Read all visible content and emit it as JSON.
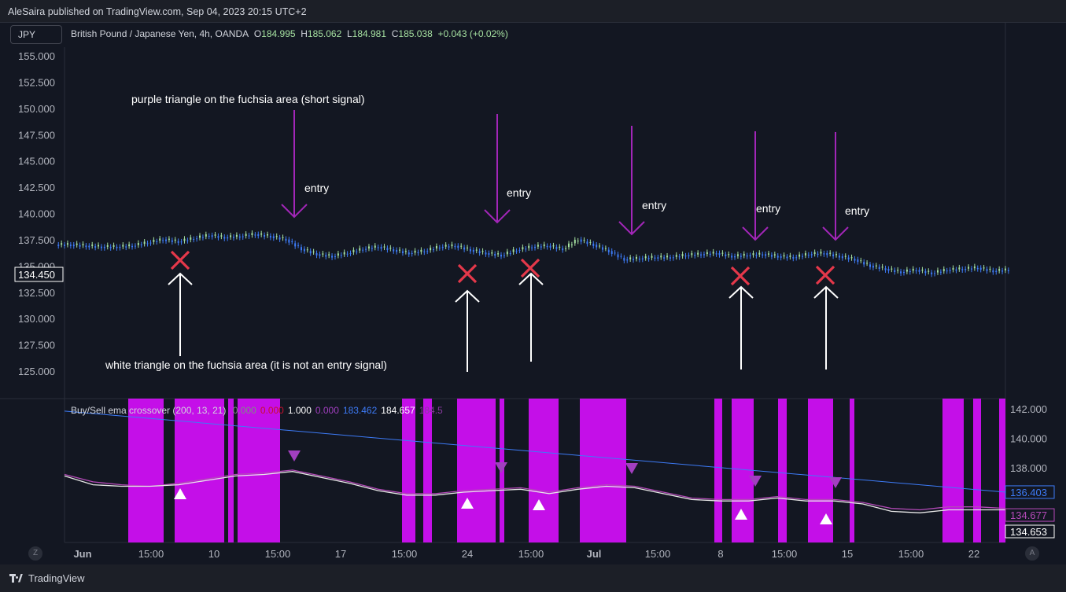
{
  "header": {
    "published": "AleSaira published on TradingView.com, Sep 04, 2023 20:15 UTC+2",
    "currency_button": "JPY"
  },
  "legend": {
    "title": "British Pound / Japanese Yen, 4h, OANDA",
    "o_label": "O",
    "o_value": "184.995",
    "h_label": "H",
    "h_value": "185.062",
    "l_label": "L",
    "l_value": "184.981",
    "c_label": "C",
    "c_value": "185.038",
    "change": "+0.043 (+0.02%)"
  },
  "indicator_legend": {
    "name": "Buy/Sell ema crossover (200, 13, 21)",
    "values": [
      {
        "text": "0.000",
        "color": "#7e8d86"
      },
      {
        "text": "0.000",
        "color": "#c8102e"
      },
      {
        "text": "1.000",
        "color": "#ffffff"
      },
      {
        "text": "0.000",
        "color": "#a23fc0"
      },
      {
        "text": "183.462",
        "color": "#3d7bf7"
      },
      {
        "text": "184.657",
        "color": "#ffffff"
      },
      {
        "text": "184.5",
        "color": "#8a3aa0"
      }
    ]
  },
  "bottom": {
    "brand": "TradingView",
    "z_button": "Z",
    "a_button": "A"
  },
  "colors": {
    "background": "#131722",
    "fuchsia": "#c40fe8",
    "purple_marker": "#a23fc0",
    "annotation_arrow": "#a226b8",
    "cross": "#e5384a",
    "ema_long": "#3d7bf7",
    "ema_fast": "#e8e8e8",
    "ema_slow": "#b44ab8",
    "candle_up": "#a5e0a0",
    "candle_down": "#3d7bf7"
  },
  "chart_data": [
    {
      "type": "candlestick",
      "pane": "price",
      "yaxis": {
        "ticks": [
          155,
          152.5,
          150,
          147.5,
          145,
          142.5,
          140,
          137.5,
          135,
          132.5,
          130,
          127.5,
          125
        ],
        "ylim": [
          123.5,
          155.5
        ]
      },
      "tick_labels": [
        "155.000",
        "152.500",
        "150.000",
        "147.500",
        "145.000",
        "142.500",
        "140.000",
        "137.500",
        "135.000",
        "132.500",
        "130.000",
        "127.500",
        "125.000"
      ],
      "price_label": "134.450",
      "series_close": [
        137.1,
        137.0,
        136.9,
        136.9,
        137.0,
        137.3,
        137.6,
        137.4,
        137.7,
        138.0,
        137.8,
        137.9,
        138.1,
        137.9,
        137.6,
        136.7,
        136.2,
        136.0,
        136.3,
        136.7,
        136.9,
        136.6,
        136.3,
        136.5,
        136.9,
        137.0,
        136.6,
        136.3,
        136.1,
        136.6,
        136.9,
        137.0,
        136.7,
        137.6,
        137.1,
        136.5,
        135.7,
        135.8,
        135.9,
        135.9,
        136.1,
        136.2,
        136.3,
        136.0,
        136.1,
        136.2,
        136.0,
        135.9,
        136.2,
        136.3,
        136.0,
        135.7,
        135.1,
        134.8,
        134.5,
        134.7,
        134.4,
        134.7,
        134.8,
        134.9,
        134.6,
        134.7
      ],
      "x_ticks": [
        "Jun",
        "15:00",
        "10",
        "15:00",
        "17",
        "15:00",
        "24",
        "15:00",
        "Jul",
        "15:00",
        "8",
        "15:00",
        "15",
        "15:00",
        "22"
      ],
      "annotations": [
        "purple triangle on the fuchsia area (short signal)",
        "white triangle on the fuchsia area (it is not an entry signal)",
        "entry",
        "entry",
        "entry",
        "entry",
        "entry"
      ]
    },
    {
      "type": "line",
      "pane": "indicator",
      "yaxis": {
        "ticks": [
          142,
          140,
          138,
          136
        ],
        "ylim": [
          133.5,
          142.9
        ]
      },
      "tick_labels": [
        "142.000",
        "140.000",
        "138.000"
      ],
      "series": [
        {
          "values": [
            141.9,
            136.4
          ],
          "color": "#3d7bf7"
        },
        {
          "values": [
            137.6,
            137.1,
            136.9,
            136.8,
            137.0,
            137.3,
            137.6,
            137.7,
            137.9,
            137.5,
            137.1,
            136.6,
            136.3,
            136.3,
            136.5,
            136.6,
            136.7,
            136.4,
            136.7,
            136.9,
            136.8,
            136.4,
            136.0,
            135.9,
            135.9,
            136.1,
            135.9,
            135.9,
            135.7,
            135.3,
            135.2,
            135.4,
            135.4,
            135.3
          ],
          "color": "#b44ab8"
        },
        {
          "values": [
            137.5,
            136.9,
            136.8,
            136.8,
            136.9,
            137.2,
            137.5,
            137.6,
            137.8,
            137.4,
            137.0,
            136.5,
            136.2,
            136.2,
            136.4,
            136.5,
            136.6,
            136.3,
            136.6,
            136.8,
            136.7,
            136.3,
            135.9,
            135.8,
            135.8,
            136.0,
            135.8,
            135.8,
            135.6,
            135.1,
            135.0,
            135.2,
            135.2,
            135.2
          ],
          "color": "#e8e8e8"
        }
      ],
      "value_labels": [
        "136.403",
        "134.677",
        "134.653"
      ]
    }
  ]
}
